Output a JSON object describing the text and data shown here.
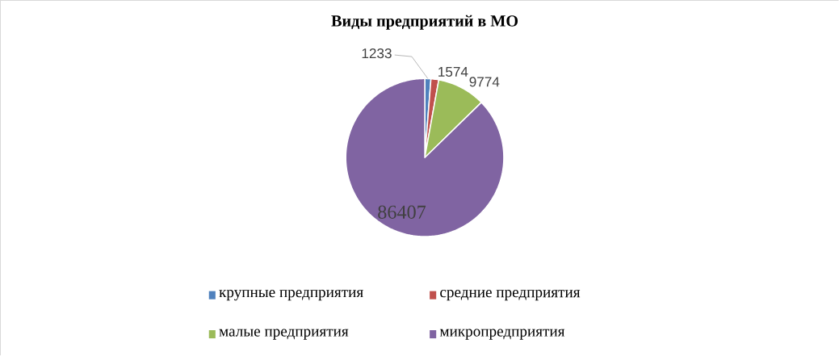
{
  "chart_data": {
    "type": "pie",
    "title": "Виды предприятий в МО",
    "categories": [
      "крупные предприятия",
      "средние предприятия",
      "малые предприятия",
      "микропредприятия"
    ],
    "values": [
      1233,
      1574,
      9774,
      86407
    ],
    "colors": [
      "#4f81bd",
      "#c0504d",
      "#9bbb59",
      "#8064a2"
    ],
    "data_labels": true,
    "legend": "bottom"
  }
}
